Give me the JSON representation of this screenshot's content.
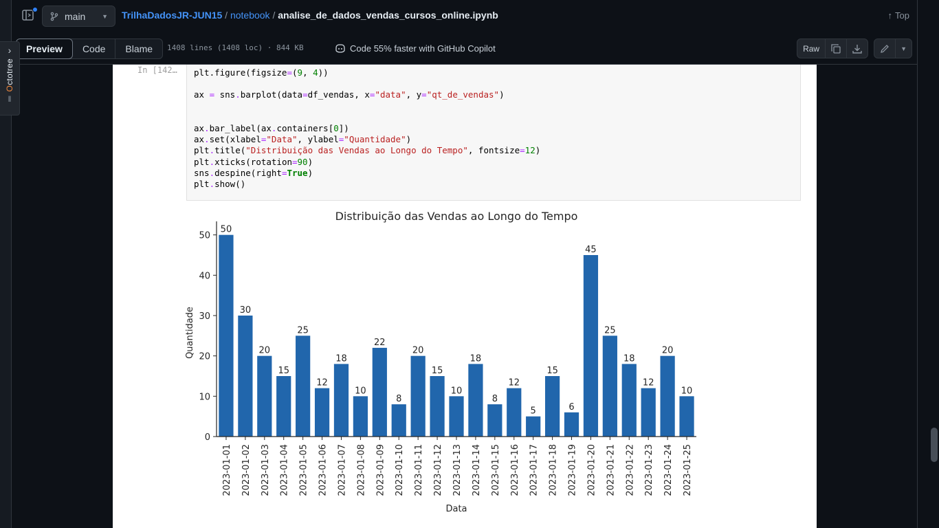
{
  "octotree": {
    "label_o": "O",
    "label_rest": "ctotree"
  },
  "header": {
    "branch": "main",
    "repo": "TrilhaDadosJR-JUN15",
    "sep1": " / ",
    "dir": "notebook",
    "sep2": " / ",
    "file": "analise_de_dados_vendas_cursos_online.ipynb",
    "top_label": "Top"
  },
  "toolbar": {
    "tabs": [
      "Preview",
      "Code",
      "Blame"
    ],
    "fileinfo": "1408 lines (1408 loc) · 844 KB",
    "copilot": "Code 55% faster with GitHub Copilot",
    "raw": "Raw"
  },
  "cell": {
    "prompt": "In [142…",
    "code_lines": [
      [
        [
          "plt.figure(figsize",
          ""
        ],
        [
          "=",
          "op"
        ],
        [
          "(",
          ""
        ],
        [
          "9",
          "num"
        ],
        [
          ", ",
          ""
        ],
        [
          "4",
          "num"
        ],
        [
          "))",
          ""
        ]
      ],
      [],
      [
        [
          "ax ",
          ""
        ],
        [
          "=",
          "op"
        ],
        [
          " sns",
          ""
        ],
        [
          ".",
          "op"
        ],
        [
          "barplot(data",
          ""
        ],
        [
          "=",
          "op"
        ],
        [
          "df_vendas, x",
          ""
        ],
        [
          "=",
          "op"
        ],
        [
          "\"data\"",
          "str"
        ],
        [
          ", y",
          ""
        ],
        [
          "=",
          "op"
        ],
        [
          "\"qt_de_vendas\"",
          "str"
        ],
        [
          ")",
          ""
        ]
      ],
      [],
      [],
      [
        [
          "ax",
          ""
        ],
        [
          ".",
          "op"
        ],
        [
          "bar_label(ax",
          ""
        ],
        [
          ".",
          "op"
        ],
        [
          "containers[",
          ""
        ],
        [
          "0",
          "num"
        ],
        [
          "])",
          ""
        ]
      ],
      [
        [
          "ax",
          ""
        ],
        [
          ".",
          "op"
        ],
        [
          "set(xlabel",
          ""
        ],
        [
          "=",
          "op"
        ],
        [
          "\"Data\"",
          "str"
        ],
        [
          ", ylabel",
          ""
        ],
        [
          "=",
          "op"
        ],
        [
          "\"Quantidade\"",
          "str"
        ],
        [
          ")",
          ""
        ]
      ],
      [
        [
          "plt",
          ""
        ],
        [
          ".",
          "op"
        ],
        [
          "title(",
          ""
        ],
        [
          "\"Distribuição das Vendas ao Longo do Tempo\"",
          "str"
        ],
        [
          ", fontsize",
          ""
        ],
        [
          "=",
          "op"
        ],
        [
          "12",
          "num"
        ],
        [
          ")",
          ""
        ]
      ],
      [
        [
          "plt",
          ""
        ],
        [
          ".",
          "op"
        ],
        [
          "xticks(rotation",
          ""
        ],
        [
          "=",
          "op"
        ],
        [
          "90",
          "num"
        ],
        [
          ")",
          ""
        ]
      ],
      [
        [
          "sns",
          ""
        ],
        [
          ".",
          "op"
        ],
        [
          "despine(right",
          ""
        ],
        [
          "=",
          "op"
        ],
        [
          "True",
          "kw"
        ],
        [
          ")",
          ""
        ]
      ],
      [
        [
          "plt",
          ""
        ],
        [
          ".",
          "op"
        ],
        [
          "show()",
          ""
        ]
      ]
    ]
  },
  "chart_data": {
    "type": "bar",
    "title": "Distribuição das Vendas ao Longo do Tempo",
    "xlabel": "Data",
    "ylabel": "Quantidade",
    "categories": [
      "2023-01-01",
      "2023-01-02",
      "2023-01-03",
      "2023-01-04",
      "2023-01-05",
      "2023-01-06",
      "2023-01-07",
      "2023-01-08",
      "2023-01-09",
      "2023-01-10",
      "2023-01-11",
      "2023-01-12",
      "2023-01-13",
      "2023-01-14",
      "2023-01-15",
      "2023-01-16",
      "2023-01-17",
      "2023-01-18",
      "2023-01-19",
      "2023-01-20",
      "2023-01-21",
      "2023-01-22",
      "2023-01-23",
      "2023-01-24",
      "2023-01-25"
    ],
    "values": [
      50,
      30,
      20,
      15,
      25,
      12,
      18,
      10,
      22,
      8,
      20,
      15,
      10,
      18,
      8,
      12,
      5,
      15,
      6,
      45,
      25,
      18,
      12,
      20,
      10
    ],
    "yticks": [
      0,
      10,
      20,
      30,
      40,
      50
    ],
    "ylim": [
      0,
      52.5
    ],
    "bar_color": "#2166ac",
    "grid": false,
    "despine": "top-right"
  }
}
